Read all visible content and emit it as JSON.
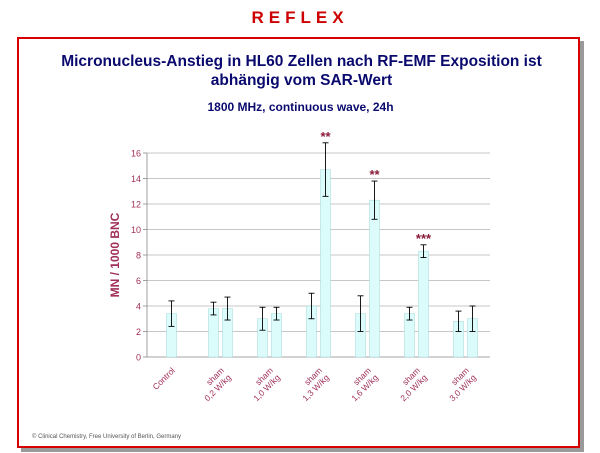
{
  "header": {
    "title": "REFLEX"
  },
  "slide": {
    "title_line1": "Micronucleus-Anstieg in HL60 Zellen nach RF-EMF Exposition ist",
    "title_line2": "abhängig  vom SAR-Wert",
    "subtitle": "1800 MHz, continuous wave, 24h",
    "copyright": "© Clinical Chemistry, Free University of Berlin, Germany"
  },
  "colors": {
    "header": "#cc0000",
    "frame": "#d60000",
    "title": "#0a0a6e",
    "axis_label": "#a0305a",
    "bar_fill": "#dcfcfc",
    "significance": "#8b1a3a"
  },
  "chart_data": {
    "type": "bar",
    "ylabel": "MN / 1000 BNC",
    "ylim": [
      0,
      16
    ],
    "yticks": [
      0,
      2,
      4,
      6,
      8,
      10,
      12,
      14,
      16
    ],
    "grid": true,
    "groups": [
      {
        "label_lines": [
          "Control"
        ],
        "bars": [
          {
            "value": 3.4,
            "error": 1.0
          }
        ]
      },
      {
        "label_lines": [
          "sham",
          "0,2 W/kg"
        ],
        "bars": [
          {
            "value": 3.8,
            "error": 0.5
          },
          {
            "value": 3.8,
            "error": 0.9
          }
        ]
      },
      {
        "label_lines": [
          "sham",
          "1,0 W/kg"
        ],
        "bars": [
          {
            "value": 3.0,
            "error": 0.9
          },
          {
            "value": 3.4,
            "error": 0.5
          }
        ]
      },
      {
        "label_lines": [
          "sham",
          "1,3 W/kg"
        ],
        "bars": [
          {
            "value": 4.0,
            "error": 1.0
          },
          {
            "value": 14.7,
            "error": 2.1,
            "significance": "**"
          }
        ]
      },
      {
        "label_lines": [
          "sham",
          "1,6 W/kg"
        ],
        "bars": [
          {
            "value": 3.4,
            "error": 1.4
          },
          {
            "value": 12.3,
            "error": 1.5,
            "significance": "**"
          }
        ]
      },
      {
        "label_lines": [
          "sham",
          "2,0 W/kg"
        ],
        "bars": [
          {
            "value": 3.4,
            "error": 0.5
          },
          {
            "value": 8.3,
            "error": 0.5,
            "significance": "***"
          }
        ]
      },
      {
        "label_lines": [
          "sham",
          "3,0 W/kg"
        ],
        "bars": [
          {
            "value": 2.8,
            "error": 0.8
          },
          {
            "value": 3.0,
            "error": 1.0
          }
        ]
      }
    ]
  }
}
